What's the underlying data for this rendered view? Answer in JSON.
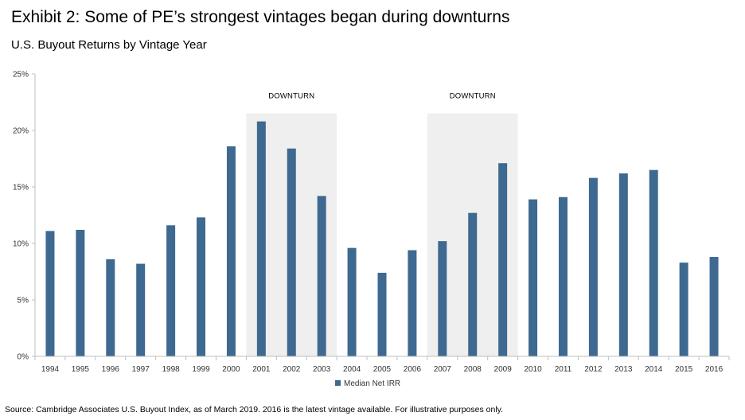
{
  "title": "Exhibit 2: Some of PE’s strongest vintages began during downturns",
  "subtitle": "U.S. Buyout Returns by Vintage Year",
  "source": "Source: Cambridge Associates U.S. Buyout Index, as of March 2019. 2016 is the latest vintage available. For illustrative purposes only.",
  "chart_data": {
    "type": "bar",
    "categories": [
      "1994",
      "1995",
      "1996",
      "1997",
      "1998",
      "1999",
      "2000",
      "2001",
      "2002",
      "2003",
      "2004",
      "2005",
      "2006",
      "2007",
      "2008",
      "2009",
      "2010",
      "2011",
      "2012",
      "2013",
      "2014",
      "2015",
      "2016"
    ],
    "series": [
      {
        "name": "Median Net IRR",
        "values": [
          11.1,
          11.2,
          8.6,
          8.2,
          11.6,
          12.3,
          18.6,
          20.8,
          18.4,
          14.2,
          9.6,
          7.4,
          9.4,
          10.2,
          12.7,
          17.1,
          13.9,
          14.1,
          15.8,
          16.2,
          16.5,
          8.3,
          8.8
        ]
      }
    ],
    "ylim": [
      0,
      25
    ],
    "yticks": [
      0,
      5,
      10,
      15,
      20,
      25
    ],
    "ytick_labels": [
      "0%",
      "5%",
      "10%",
      "15%",
      "20%",
      "25%"
    ],
    "legend_position": "bottom-center",
    "grid": false,
    "shaded_regions": [
      {
        "label": "DOWNTURN",
        "start": "2001",
        "end": "2003",
        "ymax": 21.5
      },
      {
        "label": "DOWNTURN",
        "start": "2007",
        "end": "2009",
        "ymax": 21.5
      }
    ],
    "colors": {
      "bar": "#3e6990",
      "shade": "#efefef"
    }
  }
}
